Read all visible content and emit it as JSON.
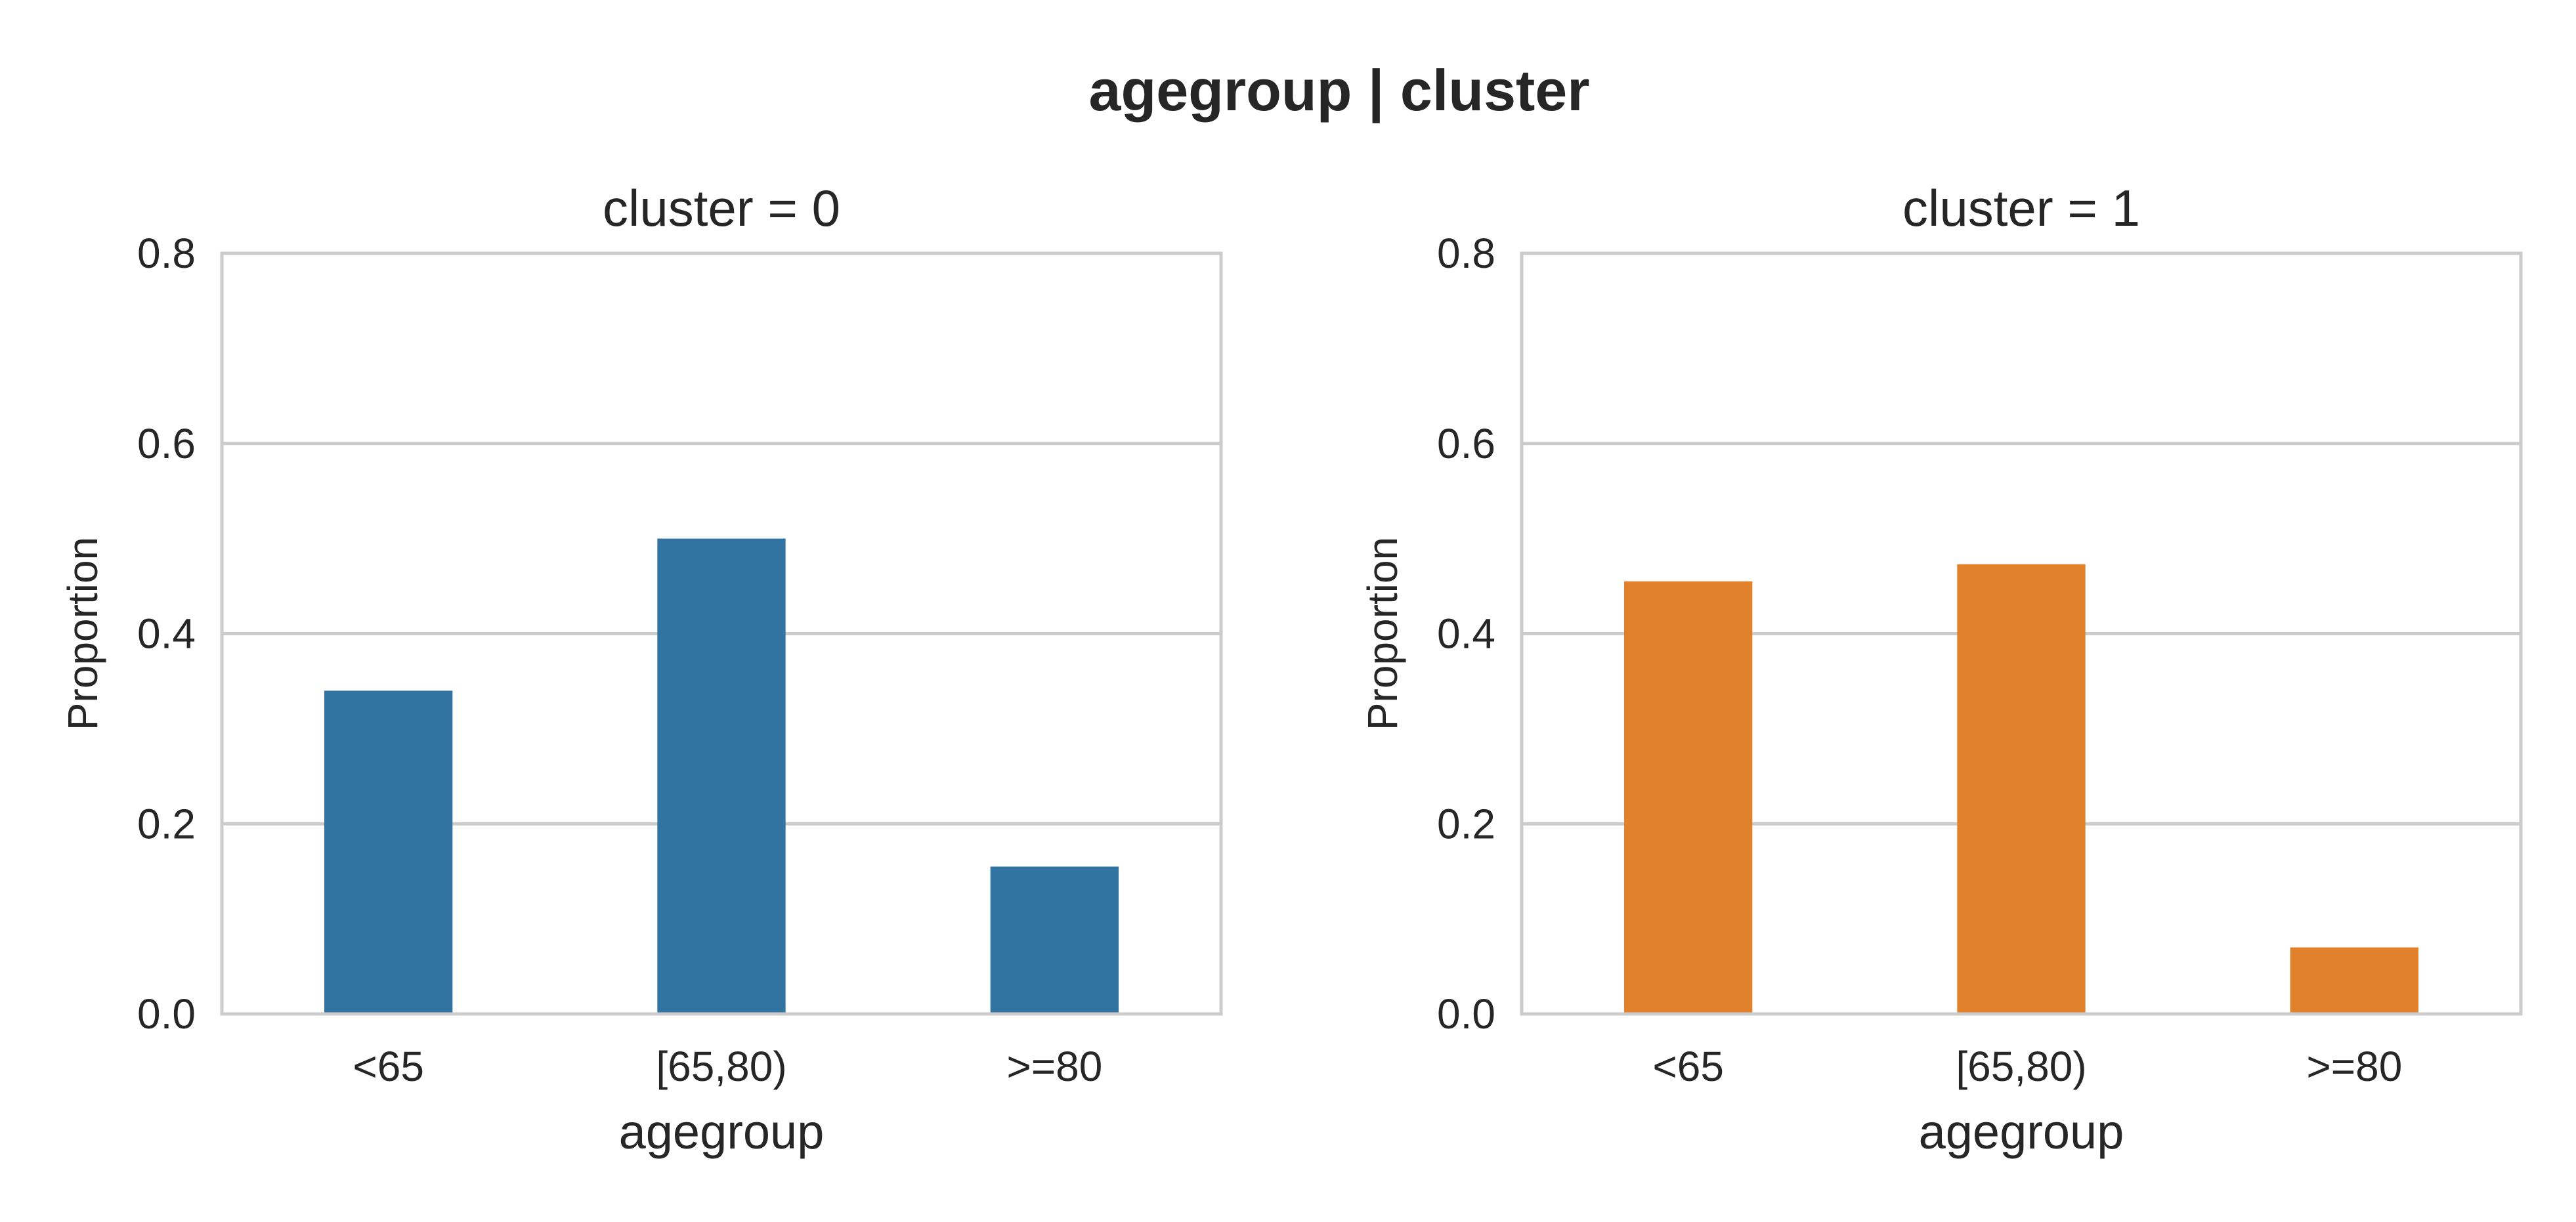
{
  "chart_data": {
    "title": "agegroup | cluster",
    "type": "bar",
    "panels": [
      {
        "title": "cluster = 0",
        "xlabel": "agegroup",
        "ylabel": "Proportion",
        "categories": [
          "<65",
          "[65,80)",
          ">=80"
        ],
        "values": [
          0.34,
          0.5,
          0.155
        ],
        "ylim": [
          0,
          0.8
        ],
        "yticks": [
          "0.0",
          "0.2",
          "0.4",
          "0.6",
          "0.8"
        ],
        "color": "#3274a1"
      },
      {
        "title": "cluster = 1",
        "xlabel": "agegroup",
        "ylabel": "Proportion",
        "categories": [
          "<65",
          "[65,80)",
          ">=80"
        ],
        "values": [
          0.455,
          0.473,
          0.07
        ],
        "ylim": [
          0,
          0.8
        ],
        "yticks": [
          "0.0",
          "0.2",
          "0.4",
          "0.6",
          "0.8"
        ],
        "color": "#e1812c"
      }
    ],
    "grid": true,
    "legend": "none"
  }
}
